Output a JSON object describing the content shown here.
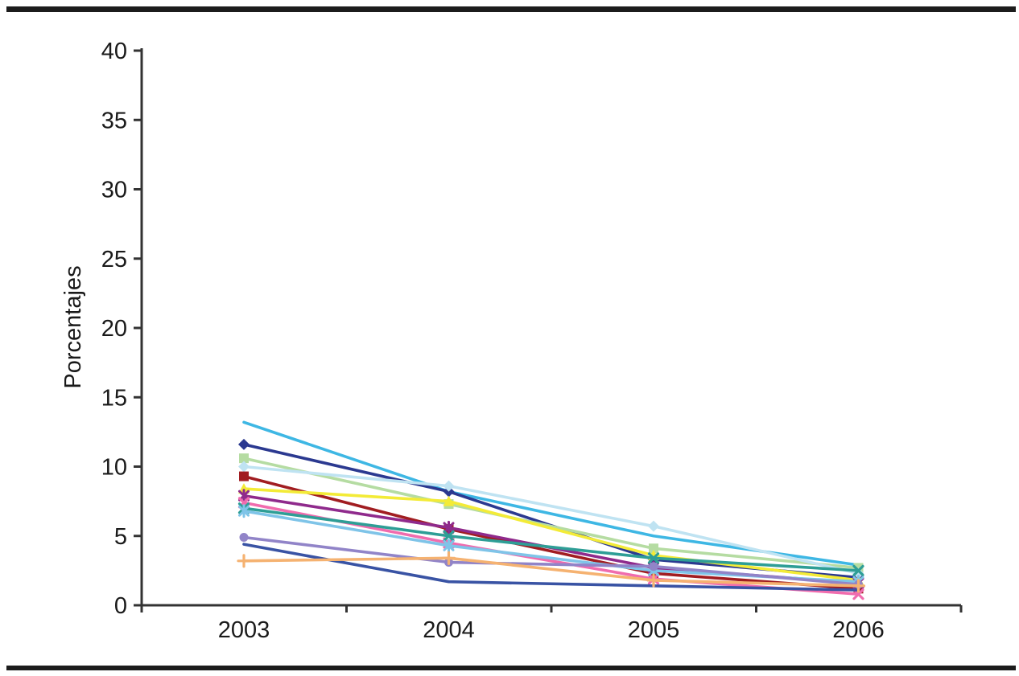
{
  "chart_data": {
    "type": "line",
    "title": "",
    "xlabel": "",
    "ylabel": "Porcentajes",
    "categories": [
      "2003",
      "2004",
      "2005",
      "2006"
    ],
    "ylim": [
      0,
      40
    ],
    "ytick_step": 5,
    "yticks": [
      "0",
      "5",
      "10",
      "15",
      "20",
      "25",
      "30",
      "35",
      "40"
    ],
    "grid": false,
    "legend_position": "none",
    "axis_color": "#333333",
    "text_color": "#1a1a1a",
    "series": [
      {
        "id": "series-01",
        "color": "#3EB7E4",
        "marker": "none",
        "values": [
          13.2,
          8.2,
          5.0,
          2.9
        ]
      },
      {
        "id": "series-02",
        "color": "#2B3990",
        "marker": "diamond",
        "values": [
          11.6,
          8.2,
          3.3,
          2.0
        ]
      },
      {
        "id": "series-03",
        "color": "#B5DCA2",
        "marker": "square",
        "values": [
          10.6,
          7.3,
          4.1,
          2.7
        ]
      },
      {
        "id": "series-04",
        "color": "#BFE3F2",
        "marker": "diamond",
        "values": [
          10.0,
          8.6,
          5.7,
          2.3
        ]
      },
      {
        "id": "series-05",
        "color": "#A11D21",
        "marker": "square",
        "values": [
          9.3,
          5.5,
          2.3,
          1.2
        ]
      },
      {
        "id": "series-06",
        "color": "#F3EB37",
        "marker": "triangle",
        "values": [
          8.4,
          7.5,
          3.6,
          1.8
        ]
      },
      {
        "id": "series-07",
        "color": "#8F2A8C",
        "marker": "asterisk",
        "values": [
          7.9,
          5.6,
          2.7,
          1.6
        ]
      },
      {
        "id": "series-08",
        "color": "#F06CAE",
        "marker": "x",
        "values": [
          7.4,
          4.5,
          1.9,
          0.8
        ]
      },
      {
        "id": "series-09",
        "color": "#2E9E96",
        "marker": "x",
        "values": [
          7.0,
          5.0,
          3.4,
          2.5
        ]
      },
      {
        "id": "series-10",
        "color": "#7FC4E8",
        "marker": "asterisk",
        "values": [
          6.8,
          4.3,
          2.5,
          1.7
        ]
      },
      {
        "id": "series-11",
        "color": "#9184C8",
        "marker": "circle",
        "values": [
          4.9,
          3.1,
          2.8,
          1.5
        ]
      },
      {
        "id": "series-12",
        "color": "#3953A4",
        "marker": "none",
        "values": [
          4.4,
          1.7,
          1.4,
          1.1
        ]
      },
      {
        "id": "series-13",
        "color": "#F5B271",
        "marker": "plus",
        "values": [
          3.2,
          3.4,
          1.8,
          1.4
        ]
      }
    ]
  }
}
